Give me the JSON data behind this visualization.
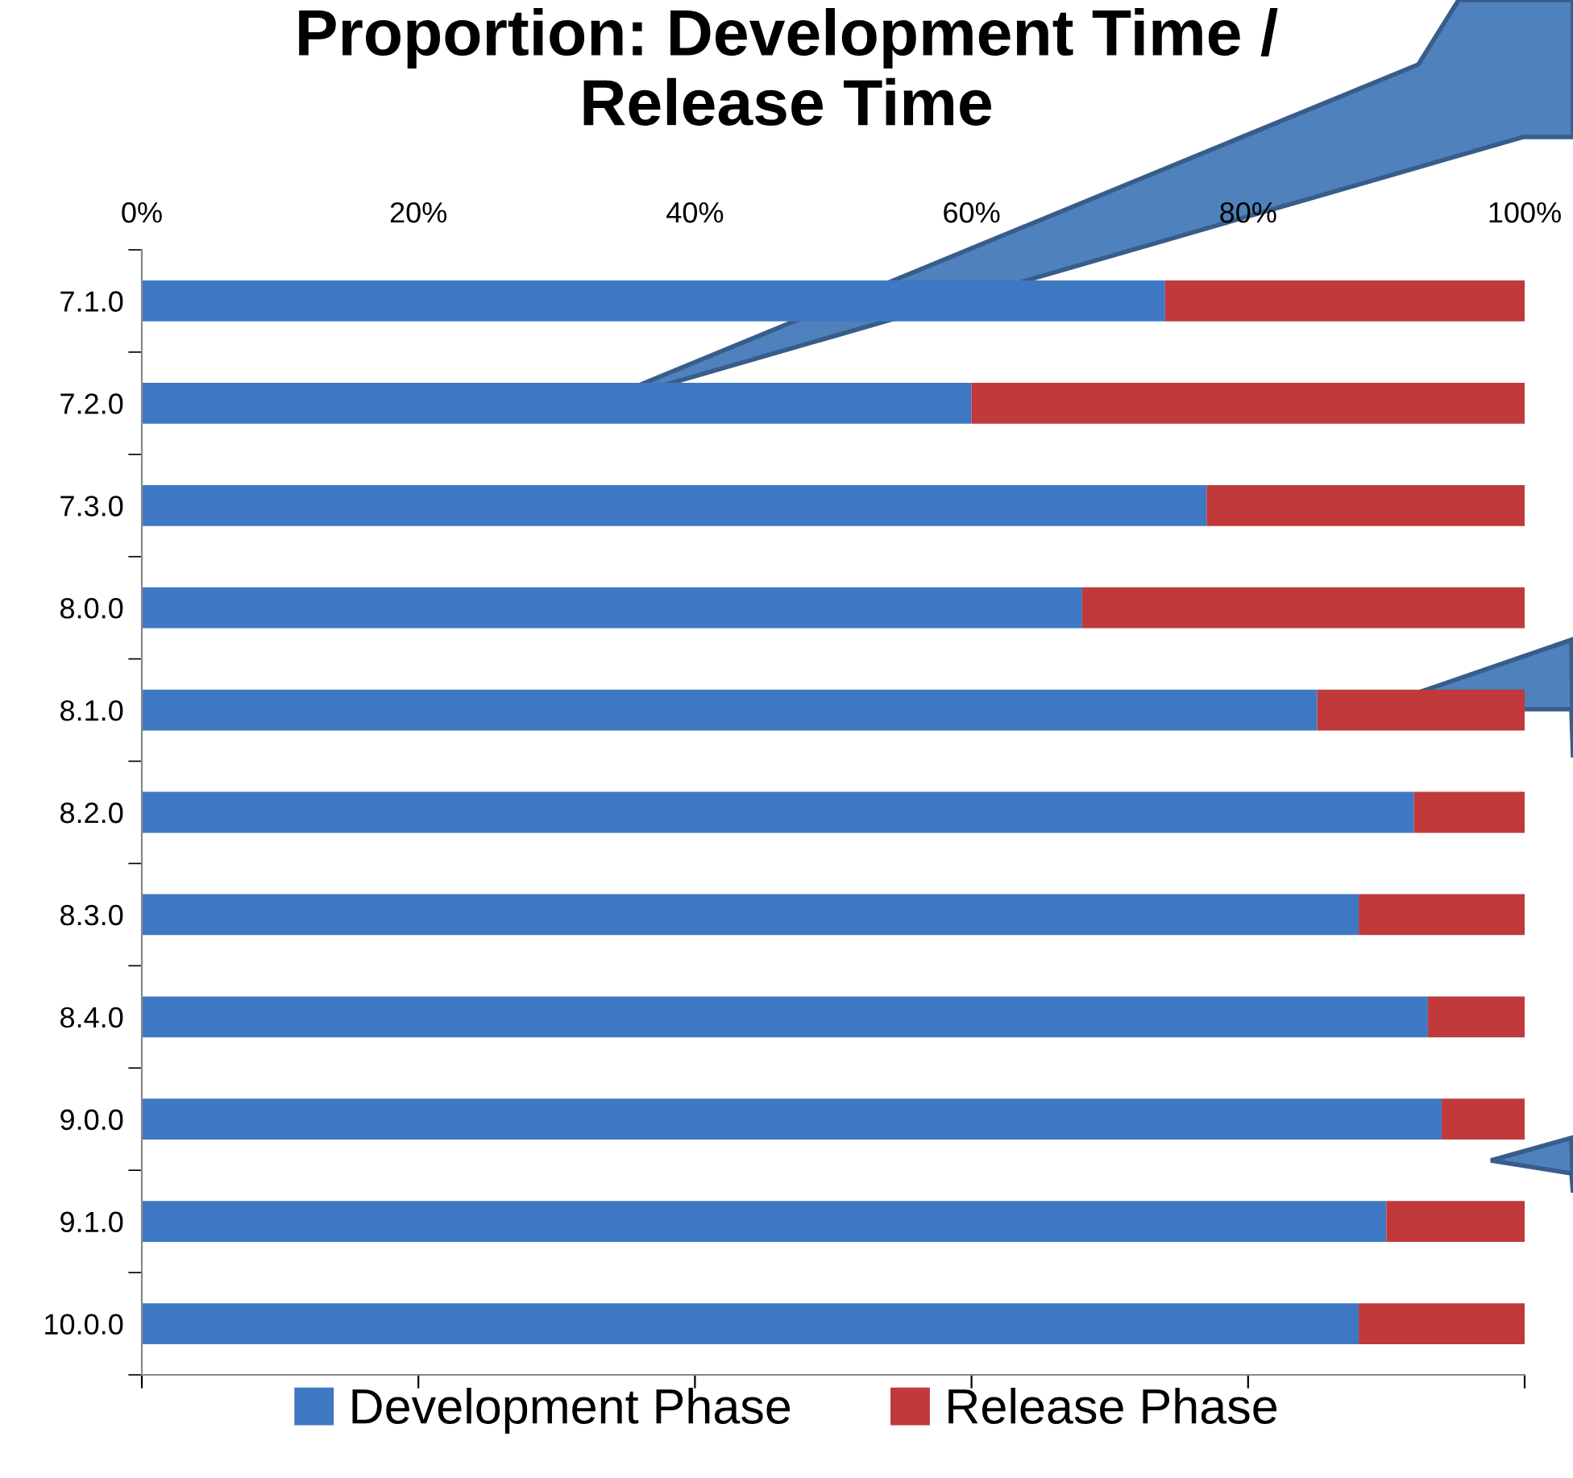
{
  "chart_data": {
    "type": "bar",
    "orientation": "horizontal",
    "stacked": true,
    "title": "Proportion: Development Time /\nRelease Time",
    "categories": [
      "7.1.0",
      "7.2.0",
      "7.3.0",
      "8.0.0",
      "8.1.0",
      "8.2.0",
      "8.3.0",
      "8.4.0",
      "9.0.0",
      "9.1.0",
      "10.0.0"
    ],
    "series": [
      {
        "name": "Development Phase",
        "color": "#3f78c2",
        "values": [
          74,
          60,
          77,
          68,
          85,
          92,
          88,
          93,
          94,
          90,
          88
        ]
      },
      {
        "name": "Release Phase",
        "color": "#c0393b",
        "values": [
          26,
          40,
          23,
          32,
          15,
          8,
          12,
          7,
          6,
          10,
          12
        ]
      }
    ],
    "xlim": [
      0,
      100
    ],
    "xticks": [
      {
        "value": 0,
        "label": "0%"
      },
      {
        "value": 20,
        "label": "20%"
      },
      {
        "value": 40,
        "label": "40%"
      },
      {
        "value": 60,
        "label": "60%"
      },
      {
        "value": 80,
        "label": "80%"
      },
      {
        "value": 100,
        "label": "100%"
      }
    ],
    "grid": false,
    "legend": "bottom"
  }
}
